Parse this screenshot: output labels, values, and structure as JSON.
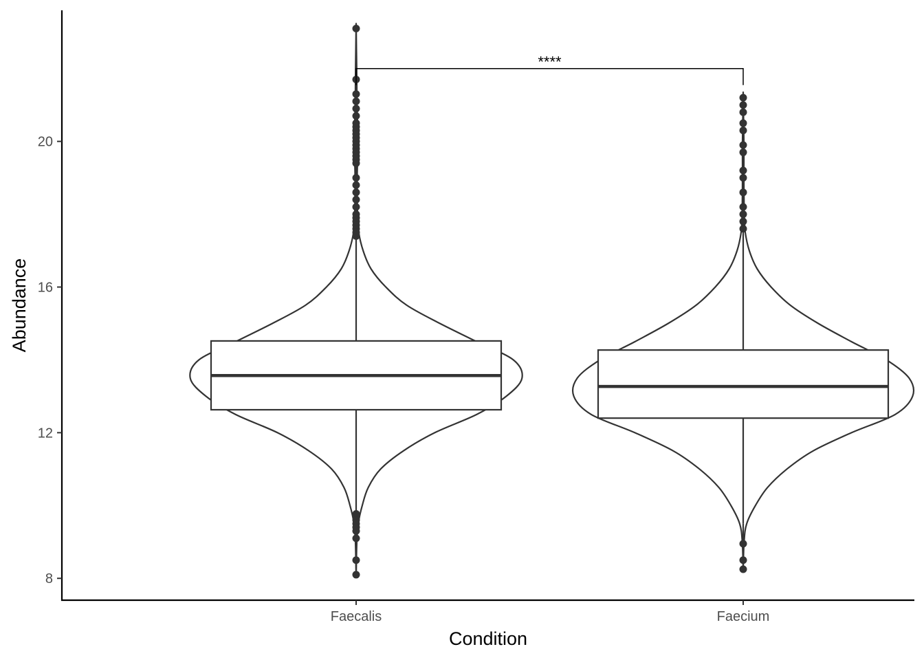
{
  "chart_data": {
    "type": "violin-boxplot",
    "xlabel": "Condition",
    "ylabel": "Abundance",
    "categories": [
      "Faecalis",
      "Faecium"
    ],
    "y_ticks": [
      8,
      12,
      16,
      20
    ],
    "ylim": [
      7.4,
      23.6
    ],
    "grid": false,
    "legend": "none",
    "colors": {
      "line": "#333333",
      "fill": "#ffffff",
      "axis": "#000000"
    },
    "groups": [
      {
        "name": "Faecalis",
        "q1": 12.63,
        "median": 13.57,
        "q3": 14.52,
        "whisker_low": 9.77,
        "whisker_high": 17.4,
        "max": 23.1,
        "min": 8.1,
        "outliers_high": [
          17.4,
          17.5,
          17.6,
          17.7,
          17.8,
          17.9,
          18.0,
          18.2,
          18.4,
          18.6,
          18.8,
          19.0,
          19.4,
          19.5,
          19.6,
          19.7,
          19.8,
          19.9,
          20.0,
          20.1,
          20.2,
          20.3,
          20.4,
          20.5,
          20.7,
          20.9,
          21.1,
          21.3,
          21.7,
          23.1
        ],
        "outliers_low": [
          9.77,
          9.7,
          9.6,
          9.5,
          9.4,
          9.3,
          9.1,
          8.5,
          8.1
        ],
        "density": [
          [
            8.1,
            0.0
          ],
          [
            9.0,
            0.004
          ],
          [
            9.5,
            0.012
          ],
          [
            10.0,
            0.035
          ],
          [
            10.5,
            0.07
          ],
          [
            11.0,
            0.14
          ],
          [
            11.5,
            0.27
          ],
          [
            12.0,
            0.45
          ],
          [
            12.5,
            0.69
          ],
          [
            13.0,
            0.86
          ],
          [
            13.5,
            0.95
          ],
          [
            14.0,
            0.9
          ],
          [
            14.5,
            0.69
          ],
          [
            15.0,
            0.48
          ],
          [
            15.5,
            0.29
          ],
          [
            16.0,
            0.17
          ],
          [
            16.5,
            0.085
          ],
          [
            17.0,
            0.04
          ],
          [
            17.5,
            0.015
          ],
          [
            18.0,
            0.008
          ],
          [
            19.0,
            0.006
          ],
          [
            20.0,
            0.01
          ],
          [
            21.0,
            0.005
          ],
          [
            22.0,
            0.003
          ],
          [
            23.1,
            0.0
          ]
        ]
      },
      {
        "name": "Faecium",
        "q1": 12.4,
        "median": 13.27,
        "q3": 14.27,
        "whisker_low": 9.5,
        "whisker_high": 17.0,
        "max": 21.2,
        "min": 8.25,
        "outliers_high": [
          17.6,
          17.8,
          18.0,
          18.2,
          18.6,
          19.0,
          19.2,
          19.7,
          19.9,
          20.3,
          20.5,
          20.8,
          21.0,
          21.2
        ],
        "outliers_low": [
          8.95,
          8.5,
          8.25
        ],
        "density": [
          [
            8.25,
            0.0
          ],
          [
            9.0,
            0.005
          ],
          [
            9.5,
            0.02
          ],
          [
            10.0,
            0.07
          ],
          [
            10.5,
            0.14
          ],
          [
            11.0,
            0.25
          ],
          [
            11.5,
            0.4
          ],
          [
            12.0,
            0.62
          ],
          [
            12.5,
            0.87
          ],
          [
            13.0,
            0.97
          ],
          [
            13.5,
            0.95
          ],
          [
            14.0,
            0.82
          ],
          [
            14.5,
            0.62
          ],
          [
            15.0,
            0.43
          ],
          [
            15.5,
            0.27
          ],
          [
            16.0,
            0.16
          ],
          [
            16.5,
            0.08
          ],
          [
            17.0,
            0.035
          ],
          [
            17.5,
            0.012
          ],
          [
            18.0,
            0.006
          ],
          [
            19.0,
            0.004
          ],
          [
            20.0,
            0.004
          ],
          [
            21.2,
            0.0
          ]
        ]
      }
    ],
    "significance": {
      "label": "****",
      "from": "Faecalis",
      "to": "Faecium",
      "y": 22.0
    }
  }
}
